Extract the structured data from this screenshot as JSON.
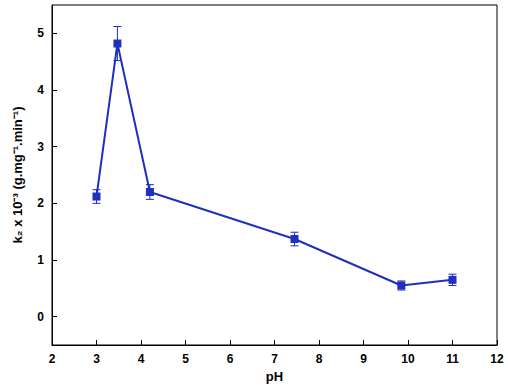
{
  "chart_data": {
    "type": "line",
    "x_label": "pH",
    "y_label": "k₂ x 10⁻³ (g.mg⁻¹.min⁻¹)",
    "x": [
      3.0,
      3.47,
      4.2,
      7.45,
      9.85,
      11.0
    ],
    "values": [
      2.12,
      4.82,
      2.2,
      1.37,
      0.55,
      0.65
    ],
    "errors": [
      0.12,
      0.3,
      0.13,
      0.12,
      0.08,
      0.1
    ],
    "color": "#1f2fbf",
    "marker": "square",
    "line_style": "solid",
    "xlim": [
      2,
      12
    ],
    "xticks": [
      2,
      3,
      4,
      5,
      6,
      7,
      8,
      9,
      10,
      11,
      12
    ],
    "ylim": [
      -0.5,
      5.5
    ],
    "yticks": [
      0,
      1,
      2,
      3,
      4,
      5
    ],
    "grid": false
  }
}
